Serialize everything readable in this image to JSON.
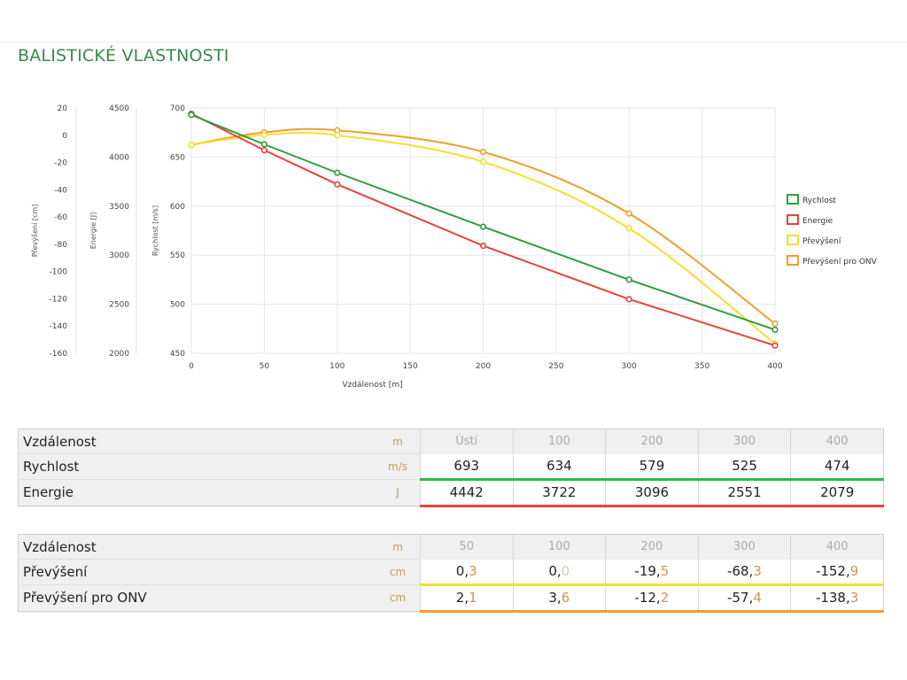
{
  "page": {
    "title": "BALISTICKÉ VLASTNOSTI"
  },
  "chart_data": {
    "type": "line",
    "xlabel": "Vzdálenost [m]",
    "xlim": [
      0,
      400
    ],
    "xticks": [
      0,
      50,
      100,
      150,
      200,
      250,
      300,
      350,
      400
    ],
    "axes": [
      {
        "key": "prevyseni",
        "label": "Převýšení [cm]",
        "ylim": [
          -160,
          20
        ],
        "ticks": [
          20,
          0,
          -20,
          -40,
          -60,
          -80,
          -100,
          -120,
          -140,
          -160
        ]
      },
      {
        "key": "energie",
        "label": "Energie [J]",
        "ylim": [
          2000,
          4500
        ],
        "ticks": [
          4500,
          4000,
          3500,
          3000,
          2500,
          2000
        ]
      },
      {
        "key": "rychlost",
        "label": "Rychlost [m/s]",
        "ylim": [
          450,
          700
        ],
        "ticks": [
          700,
          650,
          600,
          550,
          500,
          450
        ]
      }
    ],
    "grid": true,
    "legend_position": "right",
    "series": [
      {
        "name": "Rychlost",
        "axis": "rychlost",
        "color": "#2e9e3f",
        "smooth": false,
        "x": [
          0,
          50,
          100,
          200,
          300,
          400
        ],
        "y": [
          693,
          663,
          634,
          579,
          525,
          474
        ]
      },
      {
        "name": "Energie",
        "axis": "energie",
        "color": "#e8413e",
        "smooth": false,
        "x": [
          0,
          50,
          100,
          200,
          300,
          400
        ],
        "y": [
          4442,
          4070,
          3722,
          3096,
          2551,
          2079
        ]
      },
      {
        "name": "Převýšení",
        "axis": "prevyseni",
        "color": "#f7de2f",
        "smooth": true,
        "x": [
          0,
          50,
          100,
          200,
          300,
          400
        ],
        "y": [
          -7,
          0.3,
          0.0,
          -19.5,
          -68.3,
          -152.9
        ]
      },
      {
        "name": "Převýšení pro ONV",
        "axis": "prevyseni",
        "color": "#ee9f28",
        "smooth": true,
        "x": [
          0,
          50,
          100,
          200,
          300,
          400
        ],
        "y": [
          -7,
          2.1,
          3.6,
          -12.2,
          -57.4,
          -138.3
        ]
      }
    ]
  },
  "table1": {
    "header": {
      "label": "Vzdálenost",
      "unit": "m",
      "values": [
        "Ústí",
        "100",
        "200",
        "300",
        "400"
      ]
    },
    "rows": [
      {
        "label": "Rychlost",
        "unit": "m/s",
        "values": [
          "693",
          "634",
          "579",
          "525",
          "474"
        ]
      },
      {
        "label": "Energie",
        "unit": "J",
        "values": [
          "4442",
          "3722",
          "3096",
          "2551",
          "2079"
        ]
      }
    ]
  },
  "table2": {
    "header": {
      "label": "Vzdálenost",
      "unit": "m",
      "values": [
        "50",
        "100",
        "200",
        "300",
        "400"
      ]
    },
    "rows": [
      {
        "label": "Převýšení",
        "unit": "cm",
        "values": [
          {
            "int": "0,",
            "dec": "3"
          },
          {
            "int": "0,",
            "dec": "0"
          },
          {
            "int": "-19,",
            "dec": "5"
          },
          {
            "int": "-68,",
            "dec": "3"
          },
          {
            "int": "-152,",
            "dec": "9"
          }
        ]
      },
      {
        "label": "Převýšení pro ONV",
        "unit": "cm",
        "values": [
          {
            "int": "2,",
            "dec": "1"
          },
          {
            "int": "3,",
            "dec": "6"
          },
          {
            "int": "-12,",
            "dec": "2"
          },
          {
            "int": "-57,",
            "dec": "4"
          },
          {
            "int": "-138,",
            "dec": "3"
          }
        ]
      }
    ]
  }
}
